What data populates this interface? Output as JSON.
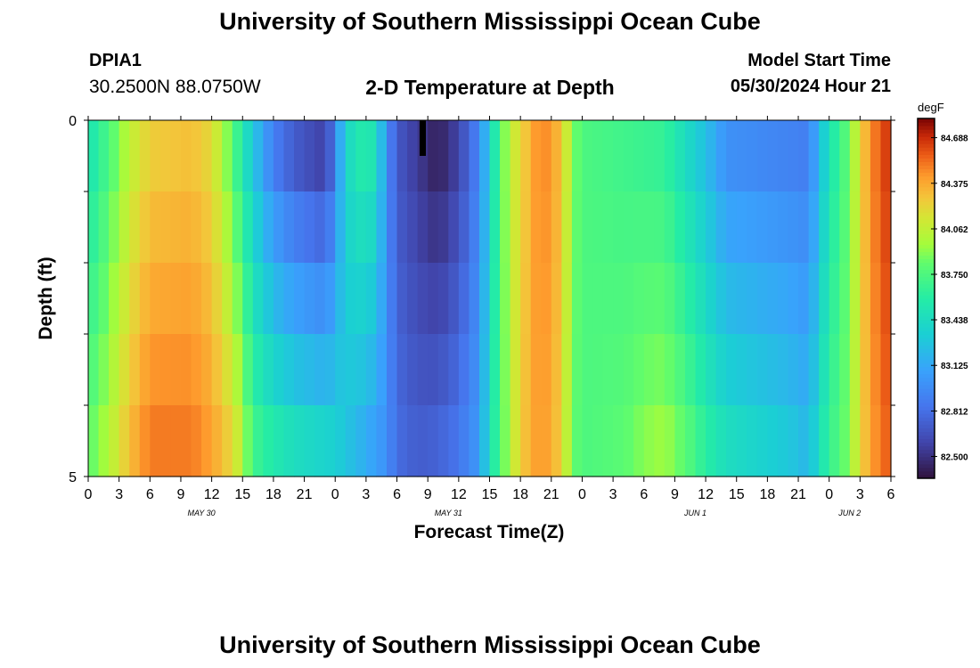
{
  "header": {
    "title": "University of Southern Mississippi Ocean Cube",
    "station_id": "DPIA1",
    "coordinates": "30.2500N  88.0750W",
    "plot_title": "2-D Temperature at Depth",
    "model_start_label": "Model Start Time",
    "model_start_value": "05/30/2024 Hour 21"
  },
  "footer": {
    "title": "University of Southern Mississippi Ocean Cube"
  },
  "chart_data": {
    "type": "heatmap",
    "title": "2-D Temperature at Depth",
    "xlabel": "Forecast Time(Z)",
    "ylabel": "Depth (ft)",
    "ylim": [
      0,
      5
    ],
    "y_tick_labels": [
      "0",
      "5"
    ],
    "x_tick_labels": [
      "0",
      "3",
      "6",
      "9",
      "12",
      "15",
      "18",
      "21",
      "0",
      "3",
      "6",
      "9",
      "12",
      "15",
      "18",
      "21",
      "0",
      "3",
      "6",
      "9",
      "12",
      "15",
      "18",
      "21",
      "0",
      "3",
      "6"
    ],
    "date_labels": [
      {
        "label": "MAY 30",
        "hour_index": 11
      },
      {
        "label": "MAY 31",
        "hour_index": 35
      },
      {
        "label": "JUN 1",
        "hour_index": 59
      },
      {
        "label": "JUN 2",
        "hour_index": 74
      }
    ],
    "time_hours": 78,
    "depth_levels": 5,
    "colorbar": {
      "unit": "degF",
      "min": 82.35,
      "max": 84.82,
      "tick_values": [
        82.5,
        82.812,
        83.125,
        83.438,
        83.75,
        84.062,
        84.375,
        84.688
      ],
      "tick_labels": [
        "82.500",
        "82.812",
        "83.125",
        "83.438",
        "83.750",
        "84.062",
        "84.375",
        "84.688"
      ]
    },
    "temperature_profiles_degF": {
      "surface": [
        [
          0,
          83.5
        ],
        [
          2,
          83.75
        ],
        [
          4,
          84.05
        ],
        [
          6,
          84.25
        ],
        [
          10,
          84.3
        ],
        [
          12,
          84.2
        ],
        [
          14,
          83.8
        ],
        [
          15,
          83.55
        ],
        [
          16,
          83.3
        ],
        [
          18,
          82.9
        ],
        [
          20,
          82.72
        ],
        [
          23,
          82.58
        ],
        [
          24,
          82.9
        ],
        [
          25,
          83.4
        ],
        [
          27,
          83.6
        ],
        [
          28,
          83.45
        ],
        [
          29,
          83.0
        ],
        [
          30,
          82.7
        ],
        [
          32,
          82.55
        ],
        [
          34,
          82.42
        ],
        [
          36,
          82.6
        ],
        [
          38,
          82.95
        ],
        [
          39,
          83.35
        ],
        [
          40,
          83.75
        ],
        [
          41,
          84.05
        ],
        [
          42,
          84.2
        ],
        [
          44,
          84.5
        ],
        [
          46,
          84.3
        ],
        [
          47,
          83.9
        ],
        [
          48,
          83.75
        ],
        [
          52,
          83.7
        ],
        [
          56,
          83.65
        ],
        [
          58,
          83.45
        ],
        [
          60,
          83.25
        ],
        [
          62,
          83.0
        ],
        [
          70,
          82.9
        ],
        [
          71,
          83.2
        ],
        [
          72,
          83.5
        ],
        [
          74,
          83.85
        ],
        [
          75,
          84.2
        ],
        [
          76,
          84.45
        ],
        [
          78,
          84.7
        ]
      ],
      "bottom": [
        [
          0,
          83.8
        ],
        [
          2,
          84.0
        ],
        [
          4,
          84.3
        ],
        [
          6,
          84.5
        ],
        [
          10,
          84.5
        ],
        [
          12,
          84.4
        ],
        [
          14,
          84.2
        ],
        [
          15,
          84.0
        ],
        [
          16,
          83.7
        ],
        [
          18,
          83.55
        ],
        [
          20,
          83.45
        ],
        [
          24,
          83.35
        ],
        [
          27,
          83.15
        ],
        [
          29,
          83.0
        ],
        [
          30,
          82.8
        ],
        [
          32,
          82.72
        ],
        [
          34,
          82.75
        ],
        [
          36,
          82.85
        ],
        [
          38,
          83.05
        ],
        [
          39,
          83.45
        ],
        [
          40,
          83.75
        ],
        [
          41,
          84.0
        ],
        [
          42,
          84.25
        ],
        [
          44,
          84.45
        ],
        [
          46,
          84.25
        ],
        [
          47,
          83.85
        ],
        [
          48,
          83.75
        ],
        [
          52,
          83.8
        ],
        [
          54,
          83.9
        ],
        [
          56,
          83.95
        ],
        [
          58,
          83.8
        ],
        [
          60,
          83.6
        ],
        [
          62,
          83.45
        ],
        [
          68,
          83.3
        ],
        [
          70,
          83.2
        ],
        [
          71,
          83.45
        ],
        [
          72,
          83.65
        ],
        [
          74,
          83.9
        ],
        [
          75,
          84.2
        ],
        [
          76,
          84.4
        ],
        [
          78,
          84.6
        ]
      ]
    }
  }
}
